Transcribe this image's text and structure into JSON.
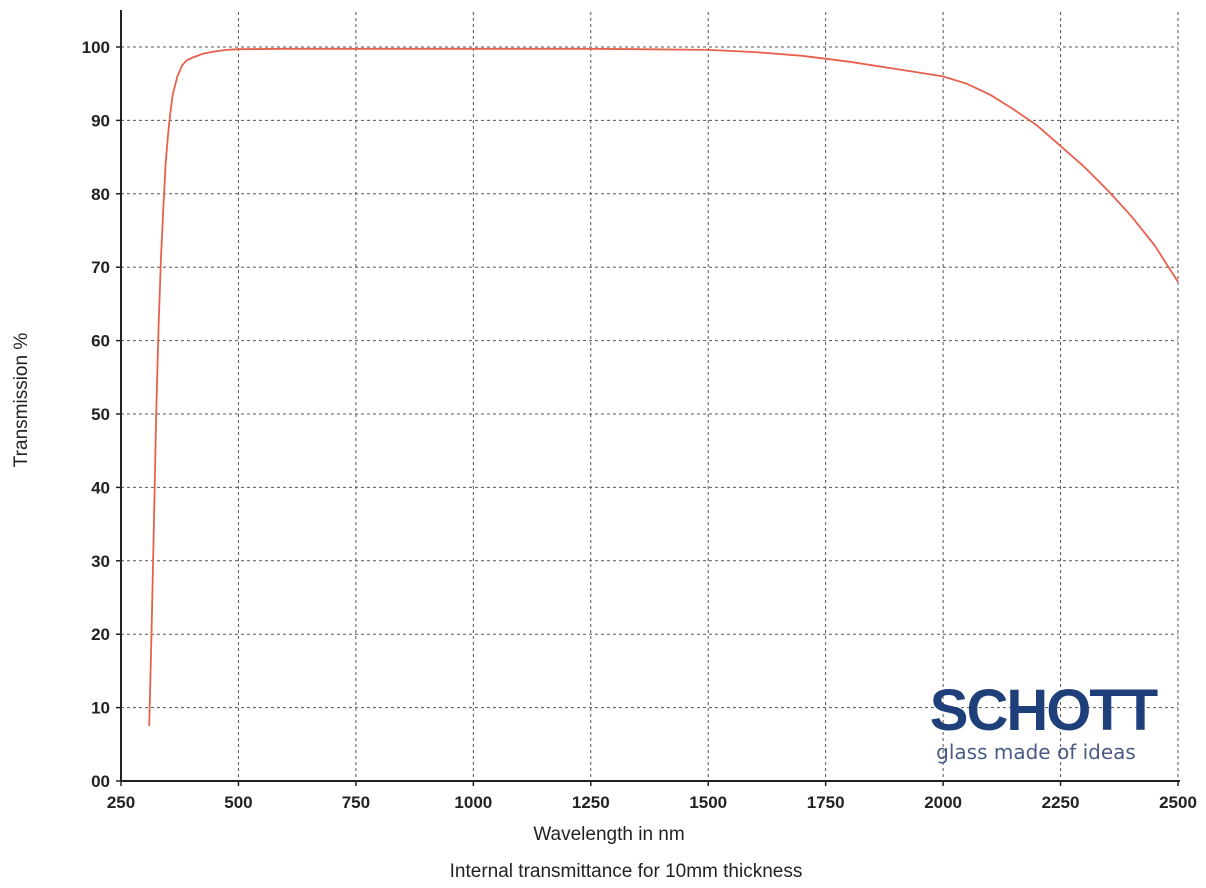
{
  "chart_data": {
    "type": "line",
    "xlabel": "Wavelength in nm",
    "ylabel": "Transmission %",
    "caption": "Internal transmittance for 10mm thickness",
    "xlim": [
      250,
      2500
    ],
    "ylim": [
      0,
      100
    ],
    "x_ticks": [
      250,
      500,
      750,
      1000,
      1250,
      1500,
      1750,
      2000,
      2250,
      2500
    ],
    "x_tick_labels": [
      "250",
      "500",
      "750",
      "1000",
      "1250",
      "1500",
      "1750",
      "2000",
      "2250",
      "2500"
    ],
    "y_ticks": [
      0,
      10,
      20,
      30,
      40,
      50,
      60,
      70,
      80,
      90,
      100
    ],
    "y_tick_labels": [
      "00",
      "10",
      "20",
      "30",
      "40",
      "50",
      "60",
      "70",
      "80",
      "90",
      "100"
    ],
    "grid": true,
    "line_color": "#e8604c",
    "series": [
      {
        "x": [
          310,
          315,
          320,
          325,
          330,
          335,
          340,
          345,
          350,
          355,
          360,
          370,
          380,
          390,
          400,
          425,
          450,
          475,
          500,
          600,
          750,
          1000,
          1250,
          1350,
          1500,
          1600,
          1700,
          1800,
          1900,
          2000,
          2050,
          2100,
          2150,
          2200,
          2250,
          2300,
          2350,
          2400,
          2450,
          2500
        ],
        "y": [
          7.5,
          20,
          35,
          50,
          62,
          71,
          78,
          84,
          88,
          91,
          93.5,
          96,
          97.5,
          98.2,
          98.5,
          99.1,
          99.4,
          99.6,
          99.7,
          99.75,
          99.75,
          99.75,
          99.75,
          99.7,
          99.6,
          99.3,
          98.8,
          98,
          97,
          96,
          95,
          93.5,
          91.5,
          89.3,
          86.5,
          83.7,
          80.5,
          77,
          73,
          68
        ]
      }
    ]
  },
  "logo": {
    "name": "SCHOTT",
    "tagline": "glass made of ideas",
    "color_primary": "#1f3f7a",
    "color_secondary": "#4a5b86"
  }
}
